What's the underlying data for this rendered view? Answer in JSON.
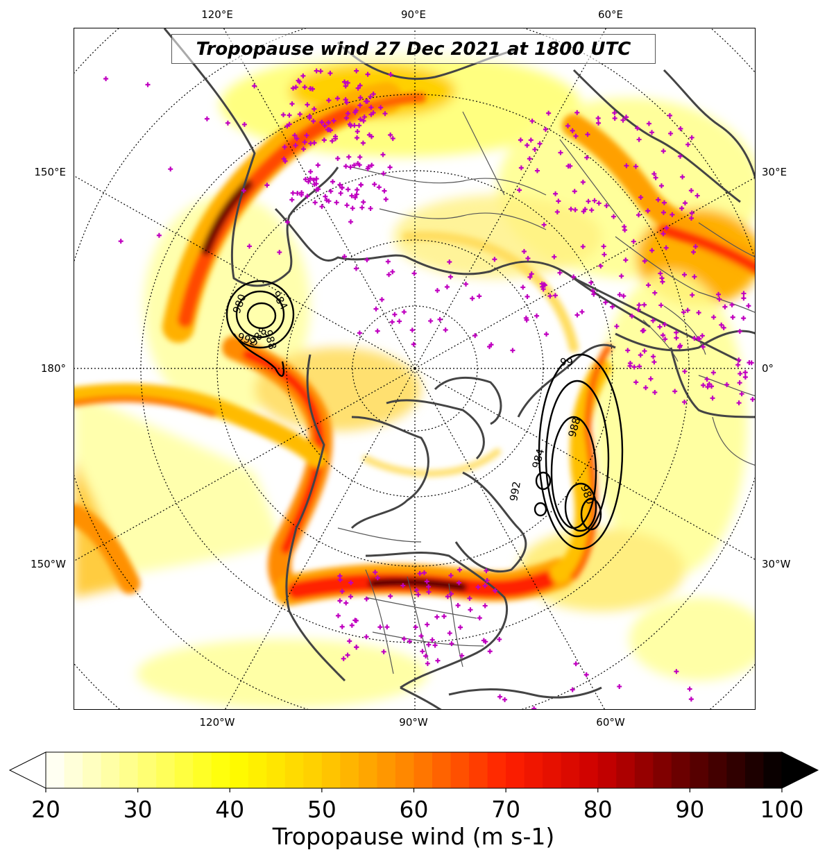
{
  "title": "Tropopause wind 27 Dec 2021 at 1800 UTC",
  "map": {
    "projection": "north-polar-stereographic",
    "central_meridian_at_bottom": "90°W",
    "field": "tropopause wind speed (shaded)",
    "contours": "mean sea level pressure (hPa)",
    "observation_marker_color": "#c000c0",
    "labels_top": [
      "120°E",
      "90°E",
      "60°E"
    ],
    "labels_bottom": [
      "120°W",
      "90°W",
      "60°W"
    ],
    "labels_left": [
      "150°E",
      "180°",
      "150°W"
    ],
    "labels_right": [
      "30°E",
      "0°",
      "30°W"
    ]
  },
  "contour_labels": [
    "980",
    "984",
    "988",
    "992",
    "988",
    "992",
    "984",
    "988",
    "980",
    "99"
  ],
  "colorbar": {
    "min": 20,
    "max": 100,
    "ticks": [
      "20",
      "30",
      "40",
      "50",
      "60",
      "70",
      "80",
      "90",
      "100"
    ],
    "label": "Tropopause wind (m s-1)",
    "extend": "both",
    "colormap": "hot_r",
    "colors": [
      "#ffffff",
      "#ffff80",
      "#ffff00",
      "#ffcc00",
      "#ff8000",
      "#ff2000",
      "#cc0000",
      "#600000",
      "#000000"
    ]
  }
}
